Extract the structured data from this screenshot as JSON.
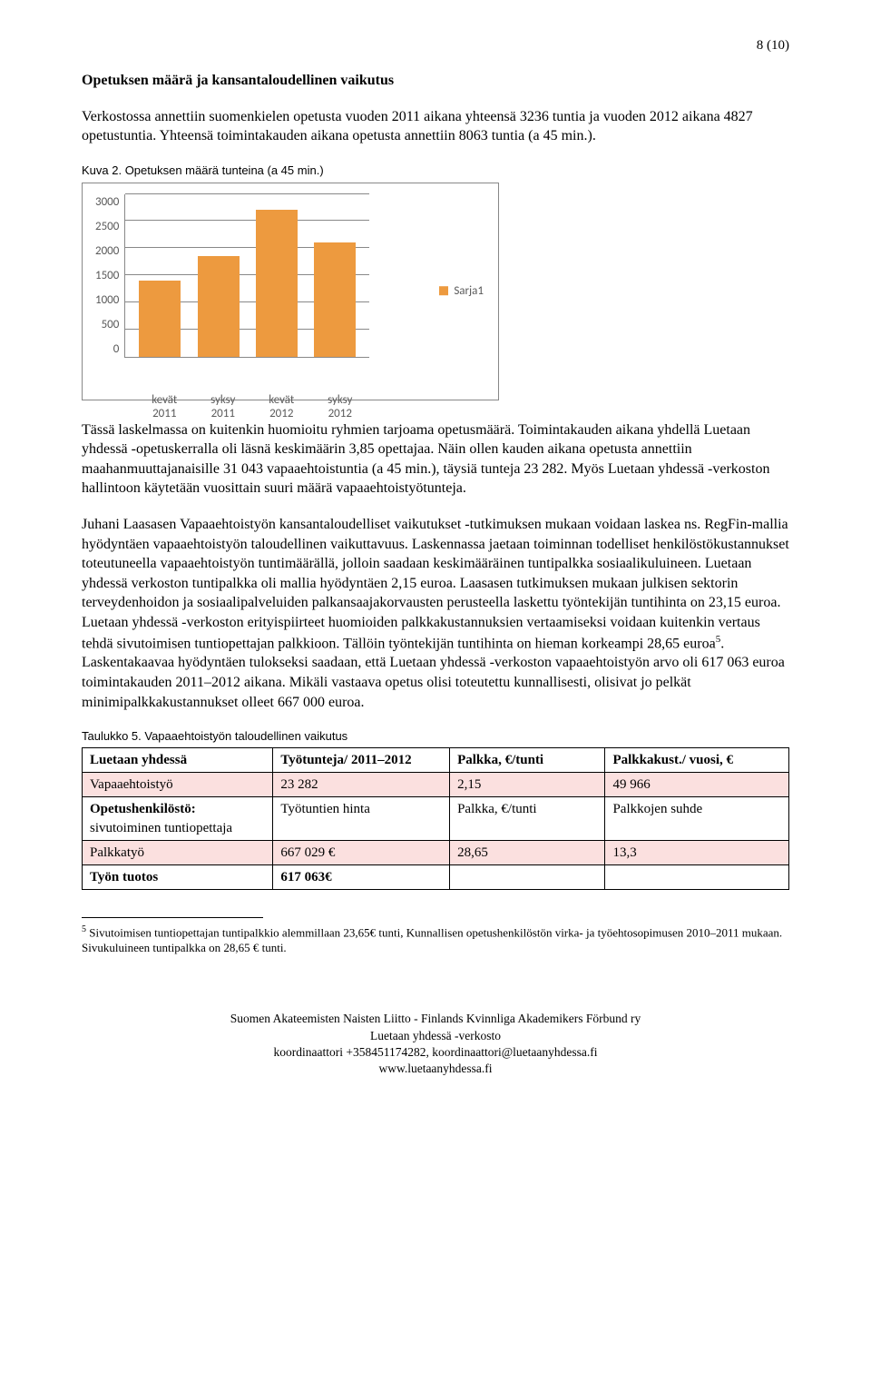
{
  "page_number": "8 (10)",
  "section_title": "Opetuksen määrä ja kansantaloudellinen vaikutus",
  "para1": "Verkostossa annettiin suomenkielen opetusta vuoden 2011 aikana yhteensä 3236 tuntia ja vuoden 2012 aikana 4827 opetustuntia. Yhteensä toimintakauden aikana opetusta annettiin 8063 tuntia (a 45 min.).",
  "chart_caption": "Kuva 2. Opetuksen määrä tunteina (a 45 min.)",
  "chart": {
    "type": "bar",
    "categories": [
      "kevät 2011",
      "syksy 2011",
      "kevät 2012",
      "syksy 2012"
    ],
    "values": [
      1400,
      1850,
      2700,
      2100
    ],
    "bar_color": "#ed9a3f",
    "grid_color": "#888888",
    "text_color": "#5a5a5a",
    "background_color": "#ffffff",
    "ylim_max": 3000,
    "ytick_step": 500,
    "yticks": [
      "3000",
      "2500",
      "2000",
      "1500",
      "1000",
      "500",
      "0"
    ],
    "series_label": "Sarja1",
    "border_color": "#888888",
    "font_family": "Calibri",
    "label_fontsize": 13
  },
  "para2": "Tässä laskelmassa on kuitenkin huomioitu ryhmien tarjoama opetusmäärä. Toimintakauden aikana yhdellä Luetaan yhdessä -opetuskerralla oli läsnä keskimäärin 3,85 opettajaa. Näin ollen kauden aikana opetusta annettiin maahanmuuttajanaisille 31 043 vapaaehtoistuntia (a 45 min.), täysiä tunteja 23 282. Myös Luetaan yhdessä -verkoston hallintoon käytetään vuosittain suuri määrä vapaaehtoistyötunteja.",
  "para3a": "Juhani Laasasen Vapaaehtoistyön kansantaloudelliset vaikutukset -tutkimuksen mukaan voidaan laskea ns. RegFin-mallia hyödyntäen vapaaehtoistyön taloudellinen vaikuttavuus. Laskennassa jaetaan toiminnan todelliset henkilöstökustannukset toteutuneella vapaaehtoistyön tuntimäärällä, jolloin saadaan keskimääräinen tuntipalkka sosiaalikuluineen. Luetaan yhdessä verkoston tuntipalkka oli mallia hyödyntäen 2,15 euroa. Laasasen tutkimuksen mukaan julkisen sektorin terveydenhoidon ja sosiaalipalveluiden palkansaajakorvausten perusteella laskettu työntekijän tuntihinta on 23,15 euroa. Luetaan yhdessä -verkoston erityispiirteet huomioiden palkkakustannuksien vertaamiseksi voidaan kuitenkin vertaus tehdä sivutoimisen tuntiopettajan palkkioon. Tällöin työntekijän tuntihinta on hieman korkeampi 28,65 euroa",
  "para3b": ". Laskentakaavaa hyödyntäen tulokseksi saadaan, että Luetaan yhdessä -verkoston vapaaehtoistyön arvo oli 617 063 euroa toimintakauden 2011–2012 aikana. Mikäli vastaava opetus olisi toteutettu kunnallisesti, olisivat jo pelkät minimipalkkakustannukset olleet 667 000 euroa.",
  "footnote_ref": "5",
  "table_caption": "Taulukko 5. Vapaaehtoistyön taloudellinen vaikutus",
  "table": {
    "shade_color": "#fbe0df",
    "col_widths": [
      "27%",
      "25%",
      "22%",
      "26%"
    ],
    "rows": [
      {
        "shade": false,
        "bold": true,
        "cells": [
          "Luetaan yhdessä",
          "Työtunteja/ 2011–2012",
          "Palkka, €/tunti",
          "Palkkakust./ vuosi, €"
        ]
      },
      {
        "shade": true,
        "bold": false,
        "cells": [
          "Vapaaehtoistyö",
          "23 282",
          "2,15",
          "49 966"
        ]
      },
      {
        "shade": false,
        "bold": false,
        "cells_bold_first": true,
        "cells": [
          "Opetushenkilöstö: sivutoiminen tuntiopettaja",
          "Työtuntien hinta",
          "Palkka, €/tunti",
          "Palkkojen suhde"
        ]
      },
      {
        "shade": true,
        "bold": false,
        "cells": [
          "Palkkatyö",
          "667 029 €",
          "28,65",
          "13,3"
        ]
      },
      {
        "shade": false,
        "bold": true,
        "cells": [
          "Työn tuotos",
          "617 063€",
          "",
          ""
        ]
      }
    ]
  },
  "footnote_text": " Sivutoimisen tuntiopettajan tuntipalkkio alemmillaan 23,65€ tunti, Kunnallisen opetushenkilöstön virka- ja työehtosopimusen 2010–2011 mukaan. Sivukuluineen  tuntipalkka on 28,65 € tunti.",
  "footer": {
    "line1": "Suomen Akateemisten Naisten Liitto - Finlands Kvinnliga Akademikers Förbund ry",
    "line2": "Luetaan yhdessä -verkosto",
    "line3": "koordinaattori +358451174282, koordinaattori@luetaanyhdessa.fi",
    "line4": "www.luetaanyhdessa.fi"
  }
}
